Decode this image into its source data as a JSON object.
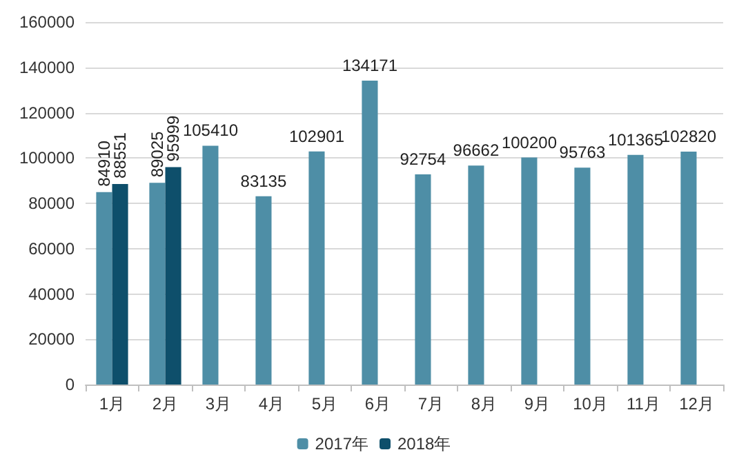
{
  "chart_data": {
    "type": "bar",
    "categories": [
      "1月",
      "2月",
      "3月",
      "4月",
      "5月",
      "6月",
      "7月",
      "8月",
      "9月",
      "10月",
      "11月",
      "12月"
    ],
    "series": [
      {
        "name": "2017年",
        "color": "#4e8ea6",
        "values": [
          84910,
          89025,
          105410,
          83135,
          102901,
          134171,
          92754,
          96662,
          100200,
          95763,
          101365,
          102820
        ]
      },
      {
        "name": "2018年",
        "color": "#0e4f6b",
        "values": [
          88551,
          95999,
          null,
          null,
          null,
          null,
          null,
          null,
          null,
          null,
          null,
          null
        ]
      }
    ],
    "ylim": [
      0,
      160000
    ],
    "yticks": [
      0,
      20000,
      40000,
      60000,
      80000,
      100000,
      120000,
      140000,
      160000
    ],
    "grid": "y",
    "legend": "bottom",
    "data_labels": true
  }
}
